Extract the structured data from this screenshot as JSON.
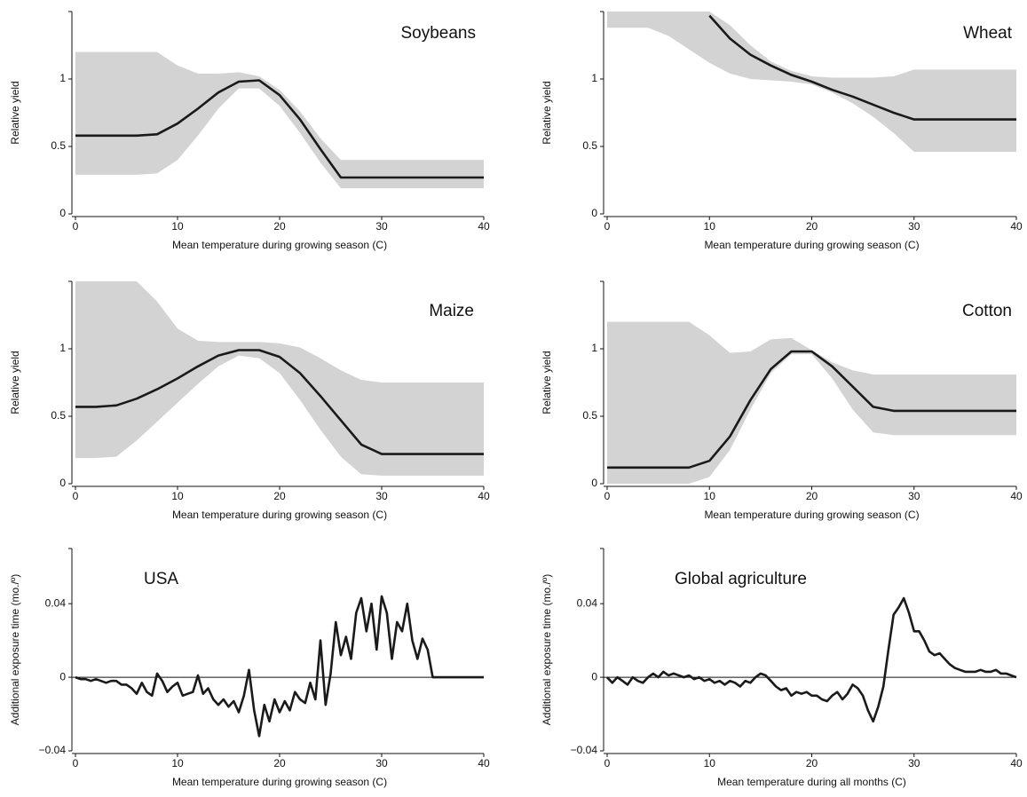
{
  "chart_data": [
    {
      "type": "band-line",
      "title": "Soybeans",
      "x_label": "Mean temperature during growing season (C)",
      "y_label": "Relative yield",
      "x": [
        0,
        2,
        4,
        6,
        8,
        10,
        12,
        14,
        16,
        18,
        20,
        22,
        24,
        26,
        28,
        30,
        32,
        34,
        36,
        38,
        40
      ],
      "xlim": [
        0,
        40
      ],
      "xticks": [
        0,
        10,
        20,
        30,
        40
      ],
      "ylim": [
        0,
        1.5
      ],
      "yticks": [
        0,
        0.5,
        1
      ],
      "series": [
        {
          "color": "#1a1a1a",
          "band_color": "#d3d3d3",
          "values": [
            0.58,
            0.58,
            0.58,
            0.58,
            0.59,
            0.67,
            0.78,
            0.9,
            0.98,
            0.99,
            0.88,
            0.7,
            0.48,
            0.27,
            0.27,
            0.27,
            0.27,
            0.27,
            0.27,
            0.27,
            0.27
          ],
          "upper": [
            1.2,
            1.2,
            1.2,
            1.2,
            1.2,
            1.1,
            1.04,
            1.04,
            1.05,
            1.02,
            0.92,
            0.76,
            0.56,
            0.4,
            0.4,
            0.4,
            0.4,
            0.4,
            0.4,
            0.4,
            0.4
          ],
          "lower": [
            0.29,
            0.29,
            0.29,
            0.29,
            0.3,
            0.4,
            0.58,
            0.78,
            0.93,
            0.93,
            0.8,
            0.6,
            0.38,
            0.19,
            0.19,
            0.19,
            0.19,
            0.19,
            0.19,
            0.19,
            0.19
          ]
        }
      ]
    },
    {
      "type": "band-line",
      "title": "Wheat",
      "x_label": "Mean temperature during growing season (C)",
      "y_label": "Relative yield",
      "x": [
        0,
        2,
        4,
        6,
        8,
        10,
        12,
        14,
        16,
        18,
        20,
        22,
        24,
        26,
        28,
        30,
        32,
        34,
        36,
        38,
        40
      ],
      "xlim": [
        0,
        40
      ],
      "xticks": [
        0,
        10,
        20,
        30,
        40
      ],
      "ylim": [
        0,
        1.5
      ],
      "yticks": [
        0,
        0.5,
        1
      ],
      "series": [
        {
          "color": "#1a1a1a",
          "band_color": "#d3d3d3",
          "values": [
            null,
            null,
            null,
            null,
            null,
            1.47,
            1.3,
            1.18,
            1.1,
            1.03,
            0.98,
            0.92,
            0.87,
            0.81,
            0.75,
            0.7,
            0.7,
            0.7,
            0.7,
            0.7,
            0.7
          ],
          "upper": [
            1.5,
            1.5,
            1.5,
            1.5,
            1.5,
            1.5,
            1.4,
            1.25,
            1.13,
            1.06,
            1.02,
            1.01,
            1.01,
            1.01,
            1.02,
            1.07,
            1.07,
            1.07,
            1.07,
            1.07,
            1.07
          ],
          "lower": [
            1.38,
            1.38,
            1.38,
            1.32,
            1.22,
            1.12,
            1.04,
            1.0,
            0.99,
            0.98,
            0.96,
            0.9,
            0.82,
            0.72,
            0.6,
            0.46,
            0.46,
            0.46,
            0.46,
            0.46,
            0.46
          ]
        }
      ]
    },
    {
      "type": "band-line",
      "title": "Maize",
      "x_label": "Mean temperature during growing season (C)",
      "y_label": "Relative yield",
      "x": [
        0,
        2,
        4,
        6,
        8,
        10,
        12,
        14,
        16,
        18,
        20,
        22,
        24,
        26,
        28,
        30,
        32,
        34,
        36,
        38,
        40
      ],
      "xlim": [
        0,
        40
      ],
      "xticks": [
        0,
        10,
        20,
        30,
        40
      ],
      "ylim": [
        0,
        1.5
      ],
      "yticks": [
        0,
        0.5,
        1
      ],
      "series": [
        {
          "color": "#1a1a1a",
          "band_color": "#d3d3d3",
          "values": [
            0.57,
            0.57,
            0.58,
            0.63,
            0.7,
            0.78,
            0.87,
            0.95,
            0.99,
            0.99,
            0.94,
            0.82,
            0.65,
            0.47,
            0.29,
            0.22,
            0.22,
            0.22,
            0.22,
            0.22,
            0.22
          ],
          "upper": [
            1.5,
            1.5,
            1.5,
            1.5,
            1.35,
            1.15,
            1.06,
            1.05,
            1.05,
            1.05,
            1.04,
            1.01,
            0.93,
            0.84,
            0.77,
            0.75,
            0.75,
            0.75,
            0.75,
            0.75,
            0.75
          ],
          "lower": [
            0.19,
            0.19,
            0.2,
            0.32,
            0.46,
            0.6,
            0.74,
            0.87,
            0.95,
            0.93,
            0.82,
            0.62,
            0.4,
            0.2,
            0.07,
            0.06,
            0.06,
            0.06,
            0.06,
            0.06,
            0.06
          ]
        }
      ]
    },
    {
      "type": "band-line",
      "title": "Cotton",
      "x_label": "Mean temperature during growing season (C)",
      "y_label": "Relative yield",
      "x": [
        0,
        2,
        4,
        6,
        8,
        10,
        12,
        14,
        16,
        18,
        20,
        22,
        24,
        26,
        28,
        30,
        32,
        34,
        36,
        38,
        40
      ],
      "xlim": [
        0,
        40
      ],
      "xticks": [
        0,
        10,
        20,
        30,
        40
      ],
      "ylim": [
        0,
        1.5
      ],
      "yticks": [
        0,
        0.5,
        1
      ],
      "series": [
        {
          "color": "#1a1a1a",
          "band_color": "#d3d3d3",
          "values": [
            0.12,
            0.12,
            0.12,
            0.12,
            0.12,
            0.17,
            0.35,
            0.62,
            0.85,
            0.98,
            0.98,
            0.87,
            0.72,
            0.57,
            0.54,
            0.54,
            0.54,
            0.54,
            0.54,
            0.54,
            0.54
          ],
          "upper": [
            1.2,
            1.2,
            1.2,
            1.2,
            1.2,
            1.1,
            0.97,
            0.98,
            1.07,
            1.08,
            0.99,
            0.9,
            0.84,
            0.81,
            0.81,
            0.81,
            0.81,
            0.81,
            0.81,
            0.81,
            0.81
          ],
          "lower": [
            0,
            0,
            0,
            0,
            0,
            0.05,
            0.25,
            0.55,
            0.82,
            0.96,
            0.96,
            0.78,
            0.55,
            0.38,
            0.36,
            0.36,
            0.36,
            0.36,
            0.36,
            0.36,
            0.36
          ]
        }
      ]
    },
    {
      "type": "line",
      "title": "USA",
      "x_label": "Mean temperature during growing season (C)",
      "y_label": "Additional exposure time (mo./º)",
      "x": [
        0,
        0.5,
        1,
        1.5,
        2,
        2.5,
        3,
        3.5,
        4,
        4.5,
        5,
        5.5,
        6,
        6.5,
        7,
        7.5,
        8,
        8.5,
        9,
        9.5,
        10,
        10.5,
        11,
        11.5,
        12,
        12.5,
        13,
        13.5,
        14,
        14.5,
        15,
        15.5,
        16,
        16.5,
        17,
        17.5,
        18,
        18.5,
        19,
        19.5,
        20,
        20.5,
        21,
        21.5,
        22,
        22.5,
        23,
        23.5,
        24,
        24.5,
        25,
        25.5,
        26,
        26.5,
        27,
        27.5,
        28,
        28.5,
        29,
        29.5,
        30,
        30.5,
        31,
        31.5,
        32,
        32.5,
        33,
        33.5,
        34,
        34.5,
        35,
        35.5,
        36,
        36.5,
        37,
        37.5,
        38,
        38.5,
        39,
        39.5,
        40
      ],
      "xlim": [
        0,
        40
      ],
      "xticks": [
        0,
        10,
        20,
        30,
        40
      ],
      "ylim": [
        -0.04,
        0.07
      ],
      "yticks": [
        {
          "value": -0.04,
          "label": "−0.04"
        },
        0,
        0.04
      ],
      "zero_line": true,
      "series": [
        {
          "color": "#1a1a1a",
          "values": [
            0,
            -0.001,
            -0.001,
            -0.002,
            -0.001,
            -0.002,
            -0.003,
            -0.002,
            -0.002,
            -0.004,
            -0.004,
            -0.006,
            -0.009,
            -0.003,
            -0.008,
            -0.01,
            0.002,
            -0.002,
            -0.008,
            -0.005,
            -0.003,
            -0.01,
            -0.009,
            -0.008,
            0.001,
            -0.009,
            -0.006,
            -0.012,
            -0.015,
            -0.012,
            -0.016,
            -0.013,
            -0.019,
            -0.01,
            0.004,
            -0.018,
            -0.032,
            -0.015,
            -0.024,
            -0.012,
            -0.019,
            -0.013,
            -0.018,
            -0.008,
            -0.012,
            -0.014,
            -0.003,
            -0.012,
            0.02,
            -0.015,
            0.002,
            0.03,
            0.012,
            0.022,
            0.01,
            0.035,
            0.043,
            0.025,
            0.04,
            0.015,
            0.044,
            0.035,
            0.01,
            0.03,
            0.025,
            0.04,
            0.02,
            0.01,
            0.021,
            0.015,
            0,
            0,
            0,
            0,
            0,
            0,
            0,
            0,
            0,
            0,
            0
          ]
        }
      ]
    },
    {
      "type": "line",
      "title": "Global agriculture",
      "x_label": "Mean temperature during all months (C)",
      "y_label": "Additional exposure time (mo./º)",
      "x": [
        0,
        0.5,
        1,
        1.5,
        2,
        2.5,
        3,
        3.5,
        4,
        4.5,
        5,
        5.5,
        6,
        6.5,
        7,
        7.5,
        8,
        8.5,
        9,
        9.5,
        10,
        10.5,
        11,
        11.5,
        12,
        12.5,
        13,
        13.5,
        14,
        14.5,
        15,
        15.5,
        16,
        16.5,
        17,
        17.5,
        18,
        18.5,
        19,
        19.5,
        20,
        20.5,
        21,
        21.5,
        22,
        22.5,
        23,
        23.5,
        24,
        24.5,
        25,
        25.5,
        26,
        26.5,
        27,
        27.5,
        28,
        28.5,
        29,
        29.5,
        30,
        30.5,
        31,
        31.5,
        32,
        32.5,
        33,
        33.5,
        34,
        34.5,
        35,
        35.5,
        36,
        36.5,
        37,
        37.5,
        38,
        38.5,
        39,
        39.5,
        40
      ],
      "xlim": [
        0,
        40
      ],
      "xticks": [
        0,
        10,
        20,
        30,
        40
      ],
      "ylim": [
        -0.04,
        0.07
      ],
      "yticks": [
        {
          "value": -0.04,
          "label": "−0.04"
        },
        0,
        0.04
      ],
      "zero_line": true,
      "series": [
        {
          "color": "#1a1a1a",
          "values": [
            0,
            -0.003,
            0,
            -0.002,
            -0.004,
            0,
            -0.002,
            -0.003,
            0,
            0.002,
            0,
            0.003,
            0.001,
            0.002,
            0.001,
            0,
            0.001,
            -0.001,
            0,
            -0.002,
            -0.001,
            -0.003,
            -0.002,
            -0.004,
            -0.002,
            -0.003,
            -0.005,
            -0.002,
            -0.003,
            0,
            0.002,
            0.001,
            -0.002,
            -0.005,
            -0.007,
            -0.006,
            -0.01,
            -0.008,
            -0.009,
            -0.008,
            -0.01,
            -0.01,
            -0.012,
            -0.013,
            -0.01,
            -0.008,
            -0.012,
            -0.009,
            -0.004,
            -0.006,
            -0.01,
            -0.018,
            -0.024,
            -0.016,
            -0.005,
            0.015,
            0.034,
            0.038,
            0.043,
            0.035,
            0.025,
            0.025,
            0.02,
            0.014,
            0.012,
            0.013,
            0.01,
            0.007,
            0.005,
            0.004,
            0.003,
            0.003,
            0.003,
            0.004,
            0.003,
            0.003,
            0.004,
            0.002,
            0.002,
            0.001,
            0
          ]
        }
      ]
    }
  ]
}
